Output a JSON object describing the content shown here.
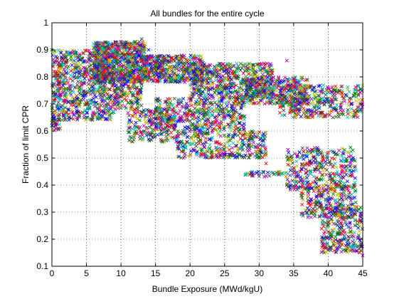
{
  "chart_data": {
    "type": "scatter",
    "title": "All bundles for the entire cycle",
    "xlabel": "Bundle Exposure (MWd/kgU)",
    "ylabel": "Fraction of limit CPR",
    "xlim": [
      0,
      45
    ],
    "ylim": [
      0.1,
      1
    ],
    "x_ticks": [
      0,
      5,
      10,
      15,
      20,
      25,
      30,
      35,
      40,
      45
    ],
    "y_ticks": [
      0.1,
      0.2,
      0.3,
      0.4,
      0.5,
      0.6,
      0.7,
      0.8,
      0.9,
      1
    ],
    "x_tick_labels": [
      "0",
      "5",
      "10",
      "15",
      "20",
      "25",
      "30",
      "35",
      "40",
      "45"
    ],
    "y_tick_labels": [
      "0.1",
      "0.2",
      "0.3",
      "0.4",
      "0.5",
      "0.6",
      "0.7",
      "0.8",
      "0.9",
      "1"
    ],
    "grid": true,
    "grid_style": "dotted",
    "marker": "x",
    "legend": "none",
    "series_colors": [
      "#0000ff",
      "#008000",
      "#ff0000",
      "#00bfbf",
      "#bf00bf",
      "#bfbf00",
      "#404040"
    ],
    "groups": [
      {
        "x_range": [
          0,
          1.2
        ],
        "y_range": [
          0.6,
          0.9
        ],
        "count": 140
      },
      {
        "x_range": [
          1,
          9
        ],
        "y_range": [
          0.64,
          0.9
        ],
        "count": 700
      },
      {
        "x_range": [
          6,
          13.5
        ],
        "y_range": [
          0.78,
          0.93
        ],
        "count": 800
      },
      {
        "x_range": [
          9,
          13
        ],
        "y_range": [
          0.68,
          0.8
        ],
        "count": 150
      },
      {
        "x_range": [
          13,
          22
        ],
        "y_range": [
          0.78,
          0.88
        ],
        "count": 500
      },
      {
        "x_range": [
          20,
          32
        ],
        "y_range": [
          0.72,
          0.85
        ],
        "count": 600
      },
      {
        "x_range": [
          28,
          37
        ],
        "y_range": [
          0.7,
          0.8
        ],
        "count": 350
      },
      {
        "x_range": [
          33,
          45
        ],
        "y_range": [
          0.65,
          0.77
        ],
        "count": 400
      },
      {
        "x_range": [
          15,
          28
        ],
        "y_range": [
          0.6,
          0.72
        ],
        "count": 450
      },
      {
        "x_range": [
          11,
          18
        ],
        "y_range": [
          0.56,
          0.68
        ],
        "count": 220
      },
      {
        "x_range": [
          18,
          31
        ],
        "y_range": [
          0.5,
          0.6
        ],
        "count": 350
      },
      {
        "x_range": [
          28,
          34
        ],
        "y_range": [
          0.43,
          0.45
        ],
        "count": 40
      },
      {
        "x_range": [
          34,
          44
        ],
        "y_range": [
          0.38,
          0.54
        ],
        "count": 350
      },
      {
        "x_range": [
          36,
          44
        ],
        "y_range": [
          0.28,
          0.4
        ],
        "count": 250
      },
      {
        "x_range": [
          39,
          45
        ],
        "y_range": [
          0.15,
          0.32
        ],
        "count": 300
      }
    ],
    "points": [
      [
        0,
        0.62
      ],
      [
        0,
        0.9
      ],
      [
        1,
        0.64
      ],
      [
        2,
        0.66
      ],
      [
        3,
        0.67
      ],
      [
        4,
        0.69
      ],
      [
        5,
        0.7
      ],
      [
        6,
        0.72
      ],
      [
        7,
        0.76
      ],
      [
        8,
        0.8
      ],
      [
        9,
        0.86
      ],
      [
        10,
        0.93
      ],
      [
        12,
        0.92
      ],
      [
        13,
        0.94
      ],
      [
        14,
        0.9
      ],
      [
        15,
        0.84
      ],
      [
        16,
        0.84
      ],
      [
        18,
        0.85
      ],
      [
        20,
        0.84
      ],
      [
        22,
        0.83
      ],
      [
        24,
        0.81
      ],
      [
        26,
        0.79
      ],
      [
        28,
        0.78
      ],
      [
        30,
        0.77
      ],
      [
        32,
        0.76
      ],
      [
        34,
        0.86
      ],
      [
        35,
        0.8
      ],
      [
        36,
        0.74
      ],
      [
        38,
        0.76
      ],
      [
        40,
        0.72
      ],
      [
        42,
        0.74
      ],
      [
        44,
        0.75
      ],
      [
        45,
        0.7
      ],
      [
        10,
        0.69
      ],
      [
        12,
        0.62
      ],
      [
        14,
        0.57
      ],
      [
        16,
        0.56
      ],
      [
        18,
        0.58
      ],
      [
        20,
        0.55
      ],
      [
        22,
        0.54
      ],
      [
        24,
        0.53
      ],
      [
        26,
        0.52
      ],
      [
        28,
        0.51
      ],
      [
        30,
        0.5
      ],
      [
        31,
        0.48
      ],
      [
        28,
        0.44
      ],
      [
        30,
        0.44
      ],
      [
        33,
        0.45
      ],
      [
        34,
        0.4
      ],
      [
        36,
        0.43
      ],
      [
        38,
        0.46
      ],
      [
        40,
        0.52
      ],
      [
        41,
        0.48
      ],
      [
        42,
        0.45
      ],
      [
        37,
        0.36
      ],
      [
        39,
        0.32
      ],
      [
        41,
        0.3
      ],
      [
        43,
        0.28
      ],
      [
        42,
        0.22
      ],
      [
        44,
        0.18
      ],
      [
        45,
        0.14
      ],
      [
        43,
        0.16
      ],
      [
        40,
        0.25
      ]
    ]
  }
}
